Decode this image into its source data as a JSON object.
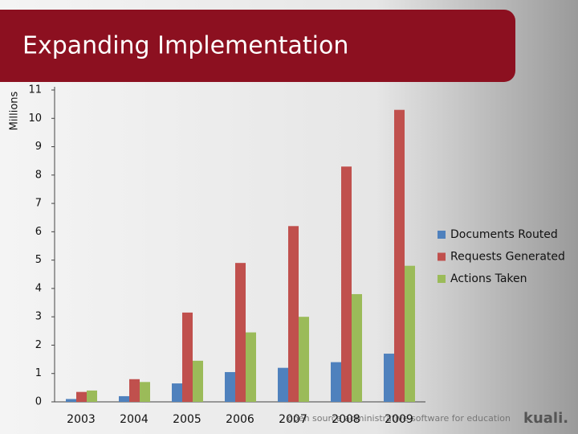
{
  "chart_data": {
    "type": "bar",
    "title": "Expanding Implementation",
    "y_label": "Millions",
    "categories": [
      "2003",
      "2004",
      "2005",
      "2006",
      "2007",
      "2008",
      "2009"
    ],
    "series": [
      {
        "name": "Documents Routed",
        "color": "#4f81bd",
        "values": [
          0.1,
          0.2,
          0.65,
          1.05,
          1.2,
          1.4,
          1.7
        ]
      },
      {
        "name": "Requests Generated",
        "color": "#c0504d",
        "values": [
          0.35,
          0.8,
          3.15,
          4.9,
          6.2,
          8.3,
          10.3
        ]
      },
      {
        "name": "Actions Taken",
        "color": "#9bbb59",
        "values": [
          0.4,
          0.7,
          1.45,
          2.45,
          3.0,
          3.8,
          4.8
        ]
      }
    ],
    "ylim": [
      0,
      11
    ],
    "yticks": [
      0,
      1,
      2,
      3,
      4,
      5,
      6,
      7,
      8,
      9,
      10,
      11
    ],
    "grid": false,
    "legend": "right"
  },
  "footer": {
    "tagline": "open source administrative software for education",
    "logo": "kuali."
  }
}
